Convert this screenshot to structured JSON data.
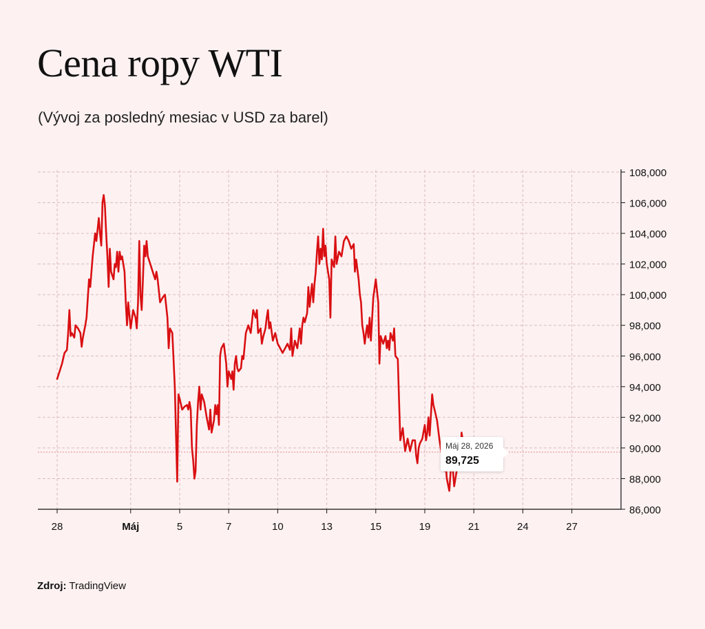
{
  "title": "Cena ropy WTI",
  "subtitle": "(Vývoj za posledný mesiac v USD za barel)",
  "source": {
    "label": "Zdroj:",
    "value": "TradingView"
  },
  "tooltip": {
    "date": "Máj 28, 2026",
    "value": "89,725"
  },
  "colors": {
    "line": "#d90f12",
    "grid": "#d9bcc0",
    "background": "#fdf1f1",
    "axis": "#111111"
  },
  "chart_data": {
    "type": "line",
    "title": "Cena ropy WTI",
    "xlabel": "",
    "ylabel": "",
    "grid": true,
    "y_axis_position": "right",
    "ylim": [
      86000,
      108000
    ],
    "yticks": [
      86000,
      88000,
      90000,
      92000,
      94000,
      96000,
      98000,
      100000,
      102000,
      104000,
      106000,
      108000
    ],
    "ytick_labels": [
      "86,000",
      "88,000",
      "90,000",
      "92,000",
      "94,000",
      "96,000",
      "98,000",
      "100,000",
      "102,000",
      "104,000",
      "106,000",
      "108,000"
    ],
    "xlim": [
      0,
      23.5
    ],
    "xticks": [
      0,
      3,
      5,
      7,
      9,
      11,
      13,
      15,
      17,
      19,
      21
    ],
    "xtick_labels": [
      "28",
      "Máj",
      "5",
      "7",
      "10",
      "13",
      "15",
      "19",
      "21",
      "24",
      "27"
    ],
    "xtick_bold": [
      "Máj"
    ],
    "last_value": 89725,
    "series": [
      {
        "values": [
          [
            0.0,
            94500
          ],
          [
            0.1,
            95000
          ],
          [
            0.2,
            95500
          ],
          [
            0.3,
            96200
          ],
          [
            0.4,
            96400
          ],
          [
            0.45,
            97500
          ],
          [
            0.5,
            99000
          ],
          [
            0.55,
            97300
          ],
          [
            0.6,
            97500
          ],
          [
            0.7,
            97200
          ],
          [
            0.75,
            98000
          ],
          [
            0.85,
            97800
          ],
          [
            0.95,
            97500
          ],
          [
            1.0,
            96600
          ],
          [
            1.05,
            97200
          ],
          [
            1.15,
            98000
          ],
          [
            1.2,
            98500
          ],
          [
            1.3,
            101000
          ],
          [
            1.35,
            100500
          ],
          [
            1.45,
            102500
          ],
          [
            1.55,
            104000
          ],
          [
            1.6,
            103500
          ],
          [
            1.7,
            105000
          ],
          [
            1.75,
            104000
          ],
          [
            1.8,
            103200
          ],
          [
            1.85,
            106000
          ],
          [
            1.9,
            106500
          ],
          [
            1.95,
            105800
          ],
          [
            2.0,
            104000
          ],
          [
            2.05,
            102500
          ],
          [
            2.1,
            100500
          ],
          [
            2.15,
            103000
          ],
          [
            2.2,
            101500
          ],
          [
            2.3,
            101000
          ],
          [
            2.35,
            102000
          ],
          [
            2.4,
            101800
          ],
          [
            2.45,
            102800
          ],
          [
            2.5,
            101500
          ],
          [
            2.55,
            102800
          ],
          [
            2.6,
            102300
          ],
          [
            2.65,
            102500
          ],
          [
            2.75,
            101500
          ],
          [
            2.8,
            99500
          ],
          [
            2.85,
            98000
          ],
          [
            2.9,
            99500
          ],
          [
            3.0,
            97800
          ],
          [
            3.1,
            99000
          ],
          [
            3.2,
            98500
          ],
          [
            3.25,
            97800
          ],
          [
            3.3,
            99500
          ],
          [
            3.35,
            103500
          ],
          [
            3.4,
            100000
          ],
          [
            3.45,
            99000
          ],
          [
            3.5,
            101000
          ],
          [
            3.55,
            103200
          ],
          [
            3.6,
            102500
          ],
          [
            3.65,
            103500
          ],
          [
            3.7,
            102500
          ],
          [
            3.8,
            102000
          ],
          [
            3.9,
            101500
          ],
          [
            4.0,
            101000
          ],
          [
            4.05,
            101500
          ],
          [
            4.1,
            101000
          ],
          [
            4.2,
            99500
          ],
          [
            4.3,
            99800
          ],
          [
            4.4,
            100000
          ],
          [
            4.5,
            98500
          ],
          [
            4.55,
            96500
          ],
          [
            4.6,
            97800
          ],
          [
            4.7,
            97500
          ],
          [
            4.8,
            94000
          ],
          [
            4.9,
            87800
          ],
          [
            4.95,
            93500
          ],
          [
            5.0,
            93200
          ],
          [
            5.1,
            92500
          ],
          [
            5.2,
            92700
          ],
          [
            5.3,
            92800
          ],
          [
            5.35,
            92500
          ],
          [
            5.4,
            93000
          ],
          [
            5.45,
            92500
          ],
          [
            5.5,
            90000
          ],
          [
            5.55,
            89200
          ],
          [
            5.6,
            88000
          ],
          [
            5.65,
            88500
          ],
          [
            5.7,
            91500
          ],
          [
            5.75,
            93000
          ],
          [
            5.8,
            94000
          ],
          [
            5.85,
            92500
          ],
          [
            5.9,
            93500
          ],
          [
            6.0,
            93000
          ],
          [
            6.1,
            92000
          ],
          [
            6.2,
            91200
          ],
          [
            6.25,
            92500
          ],
          [
            6.3,
            91000
          ],
          [
            6.4,
            91800
          ],
          [
            6.45,
            92800
          ],
          [
            6.5,
            92200
          ],
          [
            6.55,
            92800
          ],
          [
            6.6,
            91500
          ],
          [
            6.65,
            96000
          ],
          [
            6.7,
            96500
          ],
          [
            6.8,
            96800
          ],
          [
            6.9,
            95500
          ],
          [
            6.95,
            94000
          ],
          [
            7.0,
            95000
          ],
          [
            7.1,
            94500
          ],
          [
            7.15,
            95000
          ],
          [
            7.2,
            93800
          ],
          [
            7.25,
            95500
          ],
          [
            7.3,
            96000
          ],
          [
            7.35,
            95200
          ],
          [
            7.4,
            95000
          ],
          [
            7.5,
            95200
          ],
          [
            7.55,
            96000
          ],
          [
            7.6,
            95800
          ],
          [
            7.7,
            97500
          ],
          [
            7.8,
            98000
          ],
          [
            7.9,
            97500
          ],
          [
            8.0,
            99000
          ],
          [
            8.1,
            98500
          ],
          [
            8.15,
            99000
          ],
          [
            8.2,
            97500
          ],
          [
            8.3,
            97800
          ],
          [
            8.35,
            96800
          ],
          [
            8.4,
            97200
          ],
          [
            8.5,
            97800
          ],
          [
            8.55,
            98500
          ],
          [
            8.6,
            99000
          ],
          [
            8.65,
            97800
          ],
          [
            8.7,
            98200
          ],
          [
            8.8,
            97000
          ],
          [
            8.9,
            97500
          ],
          [
            9.0,
            96800
          ],
          [
            9.1,
            96500
          ],
          [
            9.2,
            96200
          ],
          [
            9.3,
            96500
          ],
          [
            9.4,
            96800
          ],
          [
            9.5,
            96400
          ],
          [
            9.55,
            97800
          ],
          [
            9.6,
            96000
          ],
          [
            9.7,
            97000
          ],
          [
            9.8,
            96500
          ],
          [
            9.9,
            97800
          ],
          [
            9.95,
            96800
          ],
          [
            10.0,
            98000
          ],
          [
            10.05,
            98500
          ],
          [
            10.1,
            98200
          ],
          [
            10.2,
            98800
          ],
          [
            10.25,
            100500
          ],
          [
            10.3,
            99200
          ],
          [
            10.35,
            100000
          ],
          [
            10.4,
            100700
          ],
          [
            10.45,
            99500
          ],
          [
            10.5,
            100700
          ],
          [
            10.55,
            101500
          ],
          [
            10.6,
            102800
          ],
          [
            10.65,
            103800
          ],
          [
            10.7,
            102000
          ],
          [
            10.75,
            103000
          ],
          [
            10.8,
            102300
          ],
          [
            10.85,
            104300
          ],
          [
            10.9,
            102500
          ],
          [
            10.95,
            103200
          ],
          [
            11.0,
            102000
          ],
          [
            11.1,
            101000
          ],
          [
            11.15,
            98500
          ],
          [
            11.2,
            102300
          ],
          [
            11.3,
            101800
          ],
          [
            11.35,
            103800
          ],
          [
            11.4,
            102000
          ],
          [
            11.5,
            102800
          ],
          [
            11.6,
            102500
          ],
          [
            11.7,
            103500
          ],
          [
            11.8,
            103800
          ],
          [
            11.9,
            103500
          ],
          [
            12.0,
            103000
          ],
          [
            12.1,
            103300
          ],
          [
            12.15,
            101500
          ],
          [
            12.2,
            102300
          ],
          [
            12.3,
            101000
          ],
          [
            12.35,
            100000
          ],
          [
            12.4,
            99500
          ],
          [
            12.45,
            98000
          ],
          [
            12.5,
            97500
          ],
          [
            12.55,
            96800
          ],
          [
            12.6,
            97500
          ],
          [
            12.65,
            98000
          ],
          [
            12.7,
            97200
          ],
          [
            12.75,
            98500
          ],
          [
            12.8,
            97000
          ],
          [
            12.9,
            99800
          ],
          [
            13.0,
            101000
          ],
          [
            13.1,
            99500
          ],
          [
            13.15,
            95500
          ],
          [
            13.2,
            97300
          ],
          [
            13.3,
            96800
          ],
          [
            13.4,
            97300
          ],
          [
            13.45,
            96500
          ],
          [
            13.5,
            97000
          ],
          [
            13.55,
            96400
          ],
          [
            13.6,
            97500
          ],
          [
            13.7,
            97000
          ],
          [
            13.75,
            97800
          ],
          [
            13.8,
            96000
          ],
          [
            13.9,
            95800
          ],
          [
            14.0,
            90500
          ],
          [
            14.1,
            91300
          ],
          [
            14.15,
            90500
          ],
          [
            14.2,
            89800
          ],
          [
            14.3,
            90600
          ],
          [
            14.4,
            89800
          ],
          [
            14.5,
            90500
          ],
          [
            14.6,
            90500
          ],
          [
            14.65,
            89500
          ],
          [
            14.7,
            89000
          ],
          [
            14.75,
            90000
          ],
          [
            14.8,
            90300
          ],
          [
            14.9,
            90600
          ],
          [
            15.0,
            91500
          ],
          [
            15.05,
            90500
          ],
          [
            15.1,
            91000
          ],
          [
            15.15,
            92000
          ],
          [
            15.2,
            90800
          ],
          [
            15.3,
            93500
          ],
          [
            15.35,
            92800
          ],
          [
            15.4,
            92500
          ],
          [
            15.5,
            91800
          ],
          [
            15.6,
            90500
          ],
          [
            15.7,
            89500
          ],
          [
            15.8,
            88500
          ],
          [
            15.85,
            89000
          ],
          [
            15.9,
            88000
          ],
          [
            16.0,
            87200
          ],
          [
            16.1,
            89500
          ],
          [
            16.2,
            87500
          ],
          [
            16.3,
            88500
          ],
          [
            16.35,
            89000
          ],
          [
            16.4,
            89200
          ],
          [
            16.45,
            88800
          ],
          [
            16.5,
            91000
          ],
          [
            16.6,
            90000
          ],
          [
            16.65,
            89600
          ],
          [
            16.8,
            89725
          ]
        ]
      }
    ]
  }
}
